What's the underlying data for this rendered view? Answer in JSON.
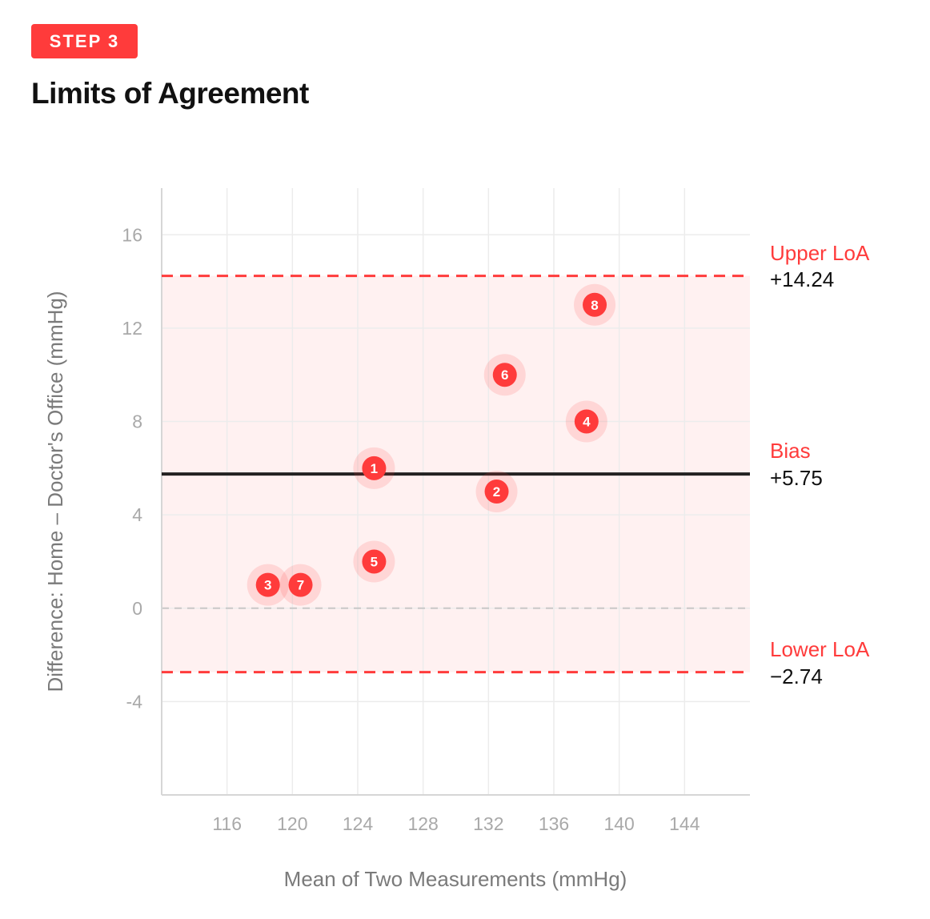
{
  "header": {
    "step_label": "STEP 3",
    "title": "Limits of Agreement"
  },
  "colors": {
    "accent": "#ff3b3b",
    "band_fill": "#fff1f1",
    "bias_line": "#222222",
    "grid": "#ececec",
    "zero_line": "#c8c8c8",
    "axis_text": "#a9a9a9",
    "axis_title": "#7a7a7a"
  },
  "chart_data": {
    "type": "scatter",
    "xlabel": "Mean of Two Measurements (mmHg)",
    "ylabel": "Difference: Home – Doctor's Office (mmHg)",
    "xlim": [
      112,
      148
    ],
    "ylim": [
      -8,
      18
    ],
    "xticks": [
      116,
      120,
      124,
      128,
      132,
      136,
      140,
      144
    ],
    "yticks": [
      -4,
      0,
      4,
      8,
      12,
      16
    ],
    "grid": true,
    "points": [
      {
        "label": "1",
        "x": 125,
        "y": 6
      },
      {
        "label": "2",
        "x": 132.5,
        "y": 5
      },
      {
        "label": "3",
        "x": 118.5,
        "y": 1
      },
      {
        "label": "4",
        "x": 138,
        "y": 8
      },
      {
        "label": "5",
        "x": 125,
        "y": 2
      },
      {
        "label": "6",
        "x": 133,
        "y": 10
      },
      {
        "label": "7",
        "x": 120.5,
        "y": 1
      },
      {
        "label": "8",
        "x": 138.5,
        "y": 13
      }
    ],
    "reference_lines": {
      "upper_loa": {
        "label": "Upper LoA",
        "value": 14.24,
        "display": "+14.24"
      },
      "bias": {
        "label": "Bias",
        "value": 5.75,
        "display": "+5.75"
      },
      "lower_loa": {
        "label": "Lower LoA",
        "value": -2.74,
        "display": "−2.74"
      },
      "zero": {
        "value": 0
      }
    }
  }
}
